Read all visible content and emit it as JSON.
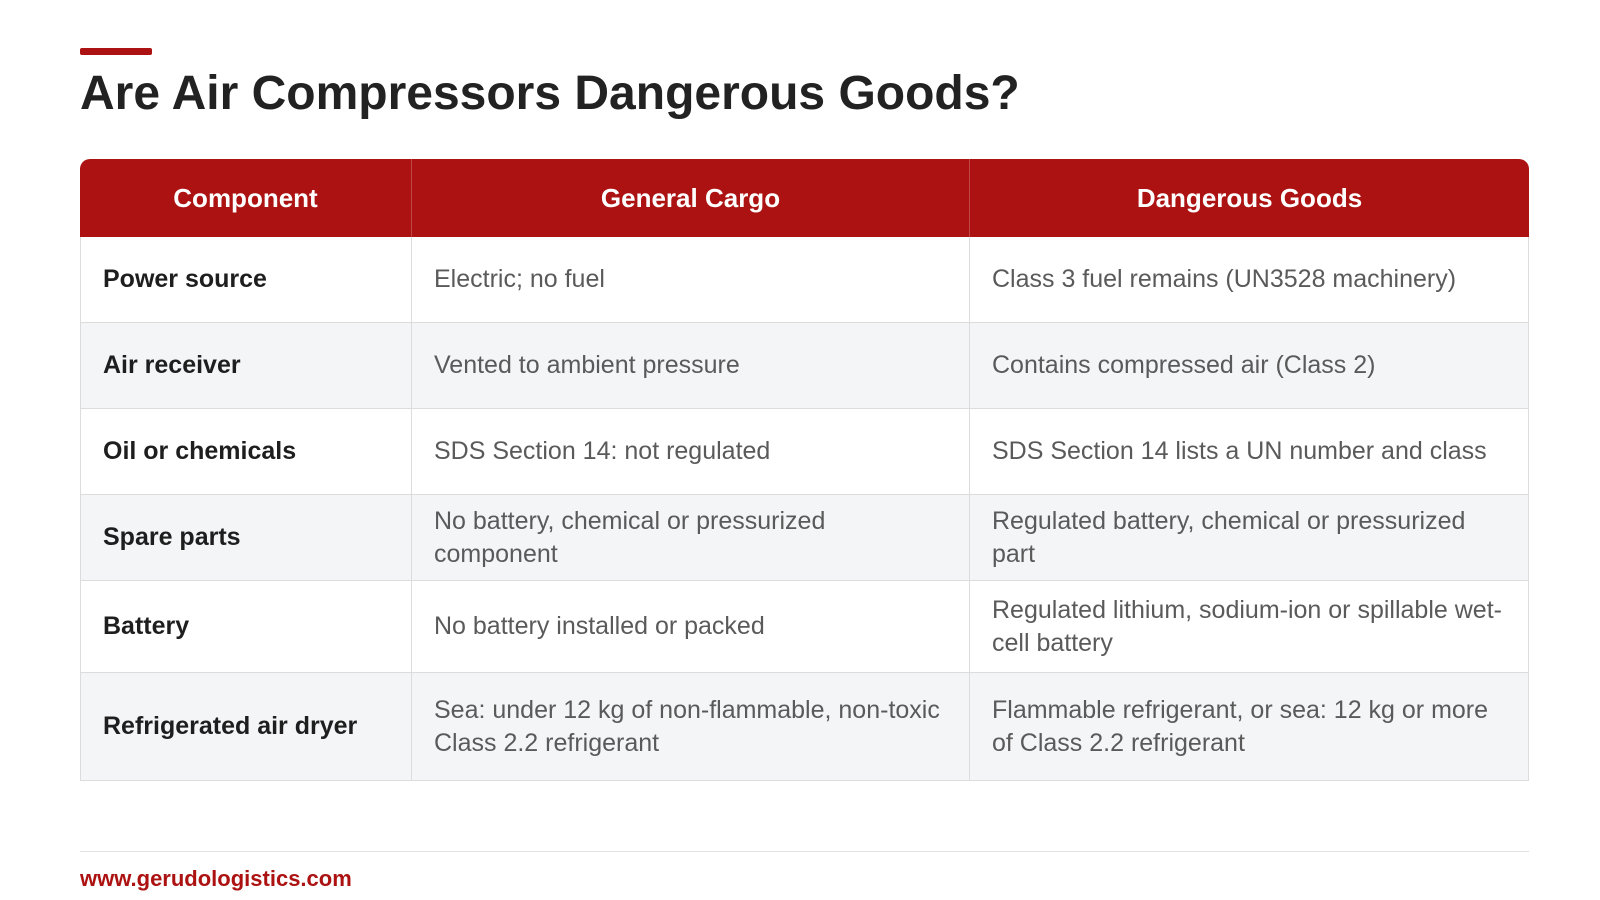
{
  "header": {
    "title": "Are Air Compressors Dangerous Goods?",
    "accent_color": "#ad1212"
  },
  "table": {
    "columns": [
      "Component",
      "General Cargo",
      "Dangerous Goods"
    ],
    "rows": [
      [
        "Power source",
        "Electric; no fuel",
        "Class 3 fuel remains (UN3528 machinery)"
      ],
      [
        "Air receiver",
        "Vented to ambient pressure",
        "Contains compressed air (Class 2)"
      ],
      [
        "Oil or chemicals",
        "SDS Section 14: not regulated",
        "SDS Section 14 lists a UN number and class"
      ],
      [
        "Spare parts",
        "No battery, chemical or pressurized component",
        "Regulated battery, chemical or pressurized part"
      ],
      [
        "Battery",
        "No battery installed or packed",
        "Regulated lithium, sodium-ion or spillable wet-cell battery"
      ],
      [
        "Refrigerated air dryer",
        "Sea: under 12 kg of non-flammable, non-toxic Class 2.2 refrigerant",
        "Flammable refrigerant, or sea: 12 kg or more of Class 2.2 refrigerant"
      ]
    ]
  },
  "footer": {
    "website": "www.gerudologistics.com"
  }
}
